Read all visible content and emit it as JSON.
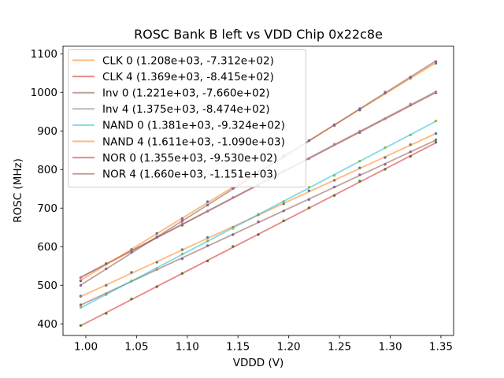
{
  "chart_data": {
    "type": "scatter",
    "title": "ROSC Bank B left vs VDD Chip 0x22c8e",
    "xlabel": "VDDD (V)",
    "ylabel": "ROSC (MHz)",
    "xlim": [
      0.9775,
      1.3625
    ],
    "ylim": [
      370,
      1120
    ],
    "grid": false,
    "legend_position": "upper left",
    "xticks": [
      1.0,
      1.05,
      1.1,
      1.15,
      1.2,
      1.25,
      1.3,
      1.35
    ],
    "xtick_labels": [
      "1.00",
      "1.05",
      "1.10",
      "1.15",
      "1.20",
      "1.25",
      "1.30",
      "1.35"
    ],
    "yticks": [
      400,
      500,
      600,
      700,
      800,
      900,
      1000,
      1100
    ],
    "ytick_labels": [
      "400",
      "500",
      "600",
      "700",
      "800",
      "900",
      "1000",
      "1100"
    ],
    "x": [
      0.995,
      1.02,
      1.045,
      1.07,
      1.095,
      1.12,
      1.145,
      1.17,
      1.195,
      1.22,
      1.245,
      1.27,
      1.295,
      1.32,
      1.345
    ],
    "style": {
      "line_alpha": 0.55,
      "line_width": 1.8,
      "marker_radius": 1.7,
      "axis_color": "#262626",
      "legend_border_color": "#cccccc",
      "legend_bg_alpha": 0.85
    },
    "series": [
      {
        "name": "CLK 0",
        "label": "CLK 0 (1.208e+03, -7.312e+02)",
        "slope": 1208.0,
        "intercept": -731.2,
        "line_color": "#ff7f0e",
        "marker_color": "#1f77b4",
        "y": [
          471.9,
          500.2,
          533.2,
          559.9,
          592.2,
          623.6,
          649.9,
          682.6,
          711.4,
          744.9,
          772.3,
          804.1,
          831.5,
          864.3,
          893.3
        ]
      },
      {
        "name": "CLK 4",
        "label": "CLK 4 (1.369e+03, -8.415e+02)",
        "slope": 1369.0,
        "intercept": -841.5,
        "line_color": "#d62728",
        "marker_color": "#2ca02c",
        "y": [
          519.7,
          556.4,
          588.5,
          625.5,
          655.8,
          692.1,
          727.2,
          757.8,
          795.3,
          828.3,
          864.8,
          895.9,
          931.9,
          967.6,
          999.1
        ]
      },
      {
        "name": "Inv 0",
        "label": "Inv 0 (1.221e+03, -7.660e+02)",
        "slope": 1221.0,
        "intercept": -766.0,
        "line_color": "#8c564b",
        "marker_color": "#9467bd",
        "y": [
          449.3,
          477.8,
          511.1,
          541.3,
          568.8,
          602.9,
          631.2,
          664.7,
          692.8,
          722.3,
          754.9,
          786.5,
          813.2,
          845.9,
          877.3
        ]
      },
      {
        "name": "Inv 4",
        "label": "Inv 4 (1.375e+03, -8.474e+02)",
        "slope": 1375.0,
        "intercept": -847.4,
        "line_color": "#7f7f7f",
        "marker_color": "#e377c2",
        "y": [
          520.1,
          556.0,
          587.6,
          625.2,
          660.6,
          691.5,
          727.2,
          760.6,
          797.3,
          827.9,
          865.5,
          899.3,
          931.8,
          969.7,
          1001.8
        ]
      },
      {
        "name": "NAND 0",
        "label": "NAND 0 (1.381e+03, -9.324e+02)",
        "slope": 1381.0,
        "intercept": -932.4,
        "line_color": "#17becf",
        "marker_color": "#bcbd22",
        "y": [
          443.7,
          475.9,
          511.7,
          543.2,
          581.3,
          614.9,
          647.6,
          684.4,
          717.4,
          754.1,
          784.6,
          821.8,
          857.2,
          889.6,
          925.9
        ]
      },
      {
        "name": "NAND 4",
        "label": "NAND 4 (1.611e+03, -1.090e+03)",
        "slope": 1611.0,
        "intercept": -1090.0,
        "line_color": "#ff7f0e",
        "marker_color": "#1f77b4",
        "y": [
          511.6,
          555.4,
          592.8,
          634.3,
          673.1,
          716.6,
          752.6,
          795.8,
          836.5,
          874.8,
          915.9,
          954.2,
          997.9,
          1037.2,
          1075.6
        ]
      },
      {
        "name": "NOR 0",
        "label": "NOR 0 (1.355e+03, -9.530e+02)",
        "slope": 1355.0,
        "intercept": -953.0,
        "line_color": "#d62728",
        "marker_color": "#2ca02c",
        "y": [
          396.0,
          427.1,
          464.4,
          496.5,
          530.9,
          563.1,
          600.7,
          631.5,
          667.3,
          700.6,
          732.9,
          769.9,
          800.9,
          834.0,
          870.8
        ]
      },
      {
        "name": "NOR 4",
        "label": "NOR 4 (1.660e+03, -1.151e+03)",
        "slope": 1660.0,
        "intercept": -1151.0,
        "line_color": "#8c564b",
        "marker_color": "#9467bd",
        "y": [
          499.8,
          542.8,
          585.8,
          624.0,
          667.5,
          708.0,
          751.2,
          788.9,
          833.1,
          875.4,
          914.1,
          958.0,
          1000.9,
          1039.7,
          1079.8
        ]
      }
    ]
  }
}
